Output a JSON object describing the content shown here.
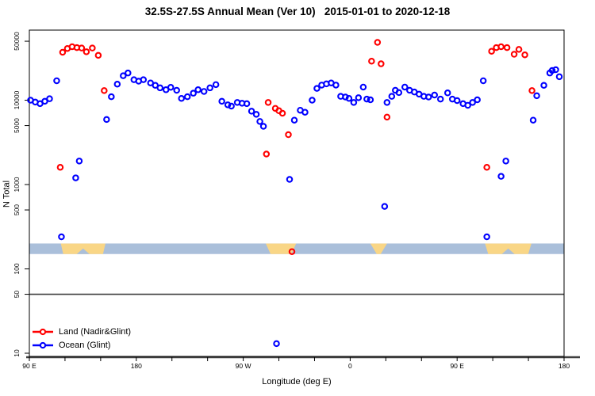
{
  "chart_data": {
    "type": "scatter",
    "title": "32.5S-27.5S Annual Mean (Ver 10)   2015-01-01 to 2020-12-18",
    "xlabel": "Longitude (deg E)",
    "ylabel": "N Total",
    "x_range": [
      90,
      540
    ],
    "x_minor_tick_step": 30,
    "x_ticks": [
      {
        "pos": 90,
        "label": "90 E"
      },
      {
        "pos": 180,
        "label": "180"
      },
      {
        "pos": 270,
        "label": "90 W"
      },
      {
        "pos": 360,
        "label": "0"
      },
      {
        "pos": 450,
        "label": "90 E"
      },
      {
        "pos": 540,
        "label": "180"
      }
    ],
    "y_scale": "log",
    "y_range": [
      9,
      70000
    ],
    "y_ticks": [
      10,
      50,
      100,
      500,
      1000,
      5000,
      10000,
      50000
    ],
    "reference_line_y": 50,
    "land_ocean_strip": {
      "y_range": [
        150,
        200
      ],
      "ocean_color": "#aabfda",
      "land_color": "#f9d686",
      "land_segments_lon": [
        [
          116.5,
          154
        ],
        [
          289,
          314.5
        ],
        [
          377,
          391
        ],
        [
          473.5,
          512.5
        ]
      ]
    },
    "legend_position": "bottom-left",
    "series": [
      {
        "name": "Land (Nadir&Glint)",
        "color": "#ff0000",
        "points": [
          [
            116,
            1600
          ],
          [
            118,
            37000
          ],
          [
            122,
            41000
          ],
          [
            126,
            43000
          ],
          [
            130,
            42000
          ],
          [
            134,
            41500
          ],
          [
            138,
            37500
          ],
          [
            143,
            41500
          ],
          [
            148,
            34000
          ],
          [
            153,
            13000
          ],
          [
            289.5,
            2300
          ],
          [
            291,
            9400
          ],
          [
            297,
            8000
          ],
          [
            300,
            7500
          ],
          [
            303,
            7000
          ],
          [
            308,
            3900
          ],
          [
            311,
            160
          ],
          [
            378,
            29000
          ],
          [
            383,
            48500
          ],
          [
            386,
            27000
          ],
          [
            391,
            6300
          ],
          [
            475,
            1600
          ],
          [
            479,
            38000
          ],
          [
            483,
            42000
          ],
          [
            487,
            43000
          ],
          [
            492,
            42000
          ],
          [
            498,
            35000
          ],
          [
            502,
            40000
          ],
          [
            507,
            34500
          ],
          [
            513,
            13000
          ]
        ]
      },
      {
        "name": "Ocean (Glint)",
        "color": "#0000ff",
        "points": [
          [
            91,
            10000
          ],
          [
            95,
            9500
          ],
          [
            99,
            9100
          ],
          [
            103,
            9700
          ],
          [
            107,
            10400
          ],
          [
            113,
            17000
          ],
          [
            117,
            240
          ],
          [
            129,
            1200
          ],
          [
            132,
            1900
          ],
          [
            155,
            5900
          ],
          [
            159,
            11000
          ],
          [
            164,
            15500
          ],
          [
            169,
            19500
          ],
          [
            173,
            21000
          ],
          [
            178,
            17500
          ],
          [
            182,
            16800
          ],
          [
            186,
            17500
          ],
          [
            192,
            16000
          ],
          [
            196,
            15000
          ],
          [
            200,
            14000
          ],
          [
            205,
            13300
          ],
          [
            209,
            14200
          ],
          [
            214,
            13100
          ],
          [
            218,
            10500
          ],
          [
            223,
            11000
          ],
          [
            228,
            12100
          ],
          [
            232,
            13300
          ],
          [
            237,
            12700
          ],
          [
            242,
            14000
          ],
          [
            247,
            15300
          ],
          [
            252,
            9700
          ],
          [
            257,
            8800
          ],
          [
            260,
            8500
          ],
          [
            265,
            9400
          ],
          [
            269,
            9200
          ],
          [
            273,
            9100
          ],
          [
            277,
            7400
          ],
          [
            281,
            6800
          ],
          [
            284,
            5600
          ],
          [
            287,
            4900
          ],
          [
            298,
            13
          ],
          [
            309,
            1150
          ],
          [
            313,
            5800
          ],
          [
            318,
            7600
          ],
          [
            322,
            7200
          ],
          [
            328,
            10000
          ],
          [
            332,
            13800
          ],
          [
            336,
            15100
          ],
          [
            340,
            15600
          ],
          [
            344,
            16000
          ],
          [
            348,
            15100
          ],
          [
            352,
            11100
          ],
          [
            356,
            10900
          ],
          [
            359,
            10500
          ],
          [
            363,
            9400
          ],
          [
            367,
            10700
          ],
          [
            371,
            14300
          ],
          [
            374,
            10300
          ],
          [
            377,
            10100
          ],
          [
            389,
            550
          ],
          [
            391,
            9400
          ],
          [
            395,
            11100
          ],
          [
            398,
            13100
          ],
          [
            401,
            12300
          ],
          [
            406,
            14300
          ],
          [
            410,
            13100
          ],
          [
            414,
            12500
          ],
          [
            418,
            11800
          ],
          [
            422,
            11100
          ],
          [
            426,
            10900
          ],
          [
            431,
            11500
          ],
          [
            436,
            10300
          ],
          [
            442,
            12200
          ],
          [
            446,
            10300
          ],
          [
            450,
            9900
          ],
          [
            455,
            9100
          ],
          [
            459,
            8700
          ],
          [
            463,
            9400
          ],
          [
            467,
            10100
          ],
          [
            472,
            17000
          ],
          [
            475,
            240
          ],
          [
            487,
            1250
          ],
          [
            491,
            1900
          ],
          [
            514,
            5800
          ],
          [
            517,
            11300
          ],
          [
            523,
            15000
          ],
          [
            528,
            21000
          ],
          [
            530,
            22500
          ],
          [
            533,
            23000
          ],
          [
            536,
            19000
          ]
        ]
      }
    ]
  }
}
